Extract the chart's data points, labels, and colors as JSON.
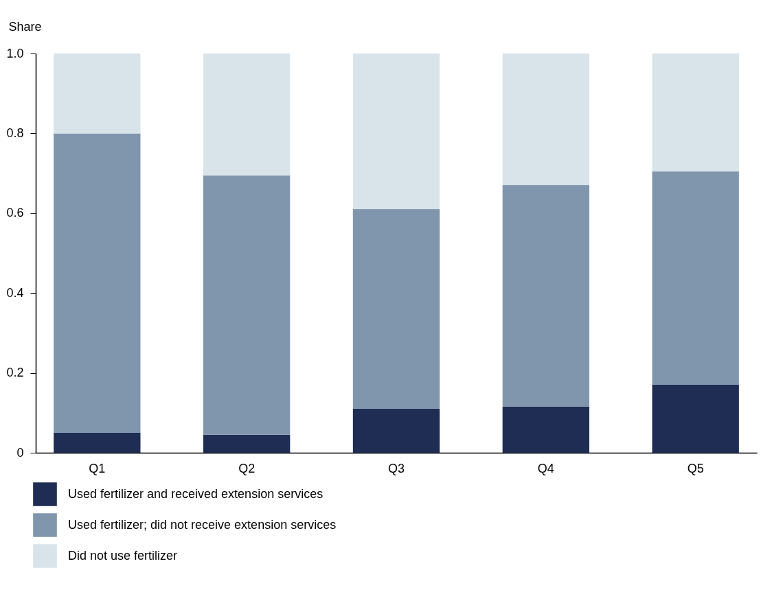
{
  "chart_data": {
    "type": "bar",
    "stacked": true,
    "ylabel": "Share",
    "categories": [
      "Q1",
      "Q2",
      "Q3",
      "Q4",
      "Q5"
    ],
    "series": [
      {
        "name": "Used fertilizer and received extension services",
        "color": "#1f2d54",
        "values": [
          0.05,
          0.045,
          0.11,
          0.115,
          0.17
        ]
      },
      {
        "name": "Used fertilizer; did not receive extension services",
        "color": "#7f96ad",
        "values": [
          0.75,
          0.65,
          0.5,
          0.555,
          0.535
        ]
      },
      {
        "name": "Did not use fertilizer",
        "color": "#d8e4ea",
        "values": [
          0.2,
          0.305,
          0.39,
          0.33,
          0.295
        ]
      }
    ],
    "ylim": [
      0,
      1
    ],
    "yticks": [
      0,
      0.2,
      0.4,
      0.6,
      0.8,
      {
        "value": 1,
        "label": "1.0"
      }
    ],
    "legend": "bottom"
  }
}
